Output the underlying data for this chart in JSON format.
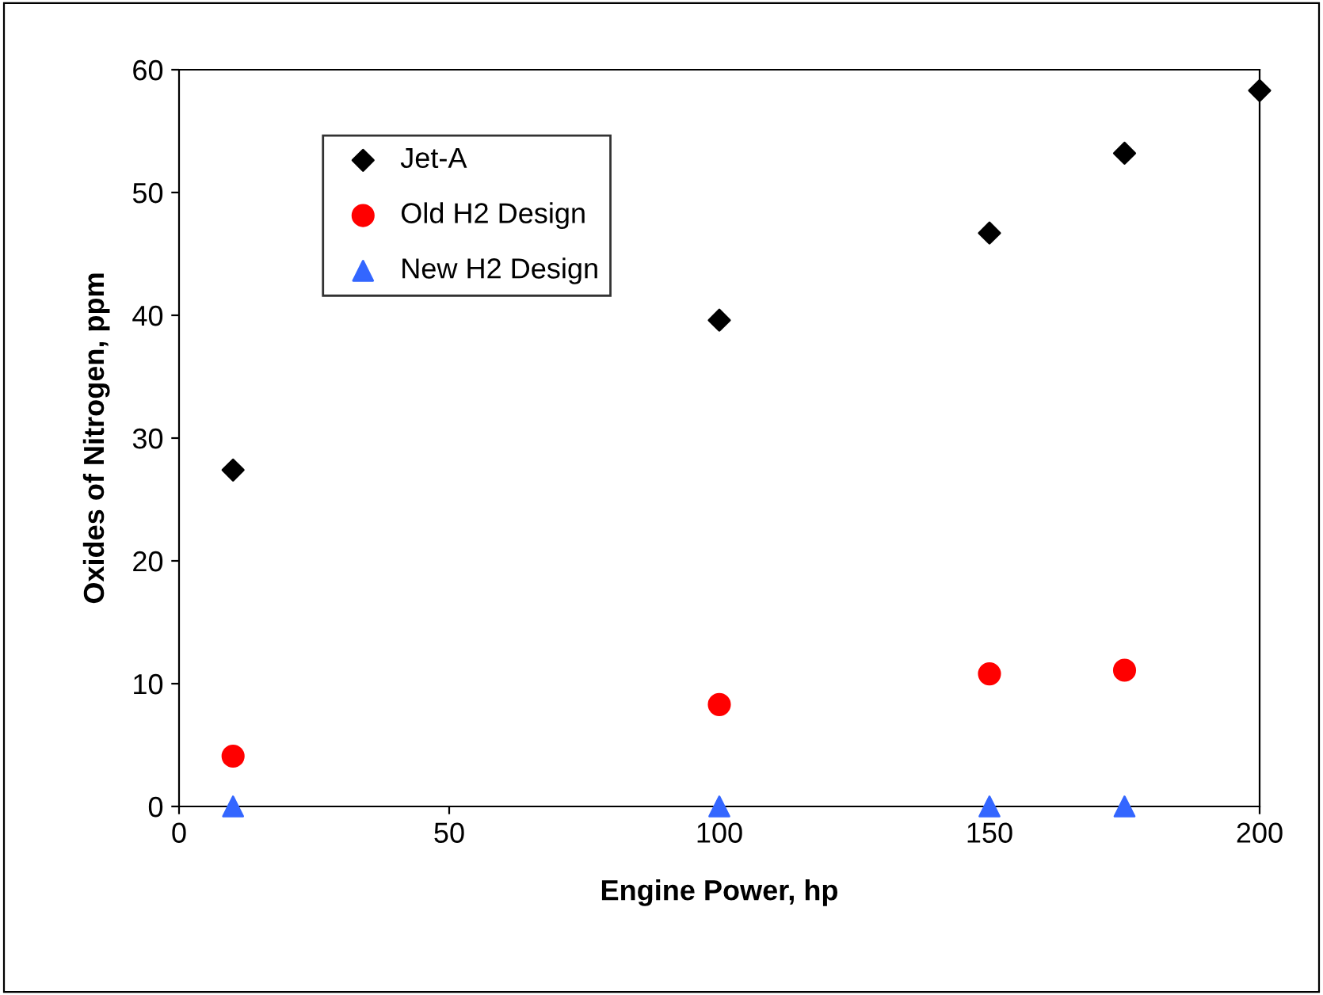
{
  "chart_data": {
    "type": "scatter",
    "xlabel": "Engine Power, hp",
    "ylabel": "Oxides of Nitrogen, ppm",
    "series": [
      {
        "name": "Jet-A",
        "color": "#000000",
        "marker": "diamond",
        "x": [
          10,
          100,
          150,
          175,
          200
        ],
        "values": [
          27.4,
          39.6,
          46.7,
          53.2,
          58.3
        ]
      },
      {
        "name": "Old H2 Design",
        "color": "#ff0000",
        "marker": "circle",
        "x": [
          10,
          100,
          150,
          175
        ],
        "values": [
          4.1,
          8.3,
          10.8,
          11.1
        ]
      },
      {
        "name": "New H2 Design",
        "color": "#3366ff",
        "marker": "triangle",
        "x": [
          10,
          100,
          150,
          175
        ],
        "values": [
          0,
          0,
          0,
          0
        ]
      }
    ],
    "xlim": [
      0,
      200
    ],
    "xticks": [
      0,
      50,
      100,
      150,
      200
    ],
    "ylim": [
      0,
      60
    ],
    "yticks": [
      0,
      10,
      20,
      30,
      40,
      50,
      60
    ],
    "grid": false,
    "legend": "top left"
  }
}
